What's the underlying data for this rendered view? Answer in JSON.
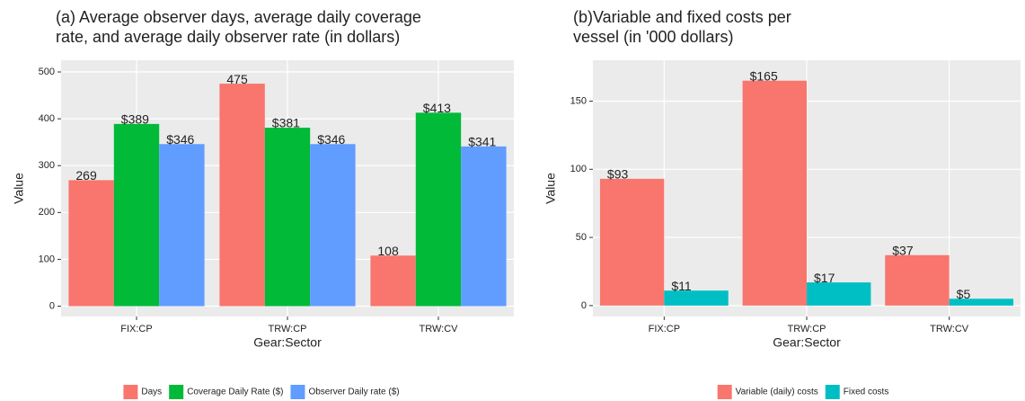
{
  "chart_data": [
    {
      "type": "bar",
      "title": [
        "(a) Average observer days, average daily coverage",
        "rate, and average daily observer rate (in dollars)"
      ],
      "x_label": "Gear:Sector",
      "y_label": "Value",
      "categories": [
        "FIX:CP",
        "TRW:CP",
        "TRW:CV"
      ],
      "series": [
        {
          "name": "Days",
          "color": "#f8766d",
          "values": [
            269,
            475,
            108
          ]
        },
        {
          "name": "Coverage Daily Rate ($)",
          "color": "#00ba38",
          "values": [
            389,
            381,
            413
          ],
          "value_labels": [
            "$389",
            "$381",
            "$413"
          ]
        },
        {
          "name": "Observer Daily rate ($)",
          "color": "#619cff",
          "values": [
            346,
            346,
            341
          ],
          "value_labels": [
            "$346",
            "$346",
            "$341"
          ]
        }
      ],
      "ylim": [
        -22,
        525
      ],
      "yticks": [
        0,
        100,
        200,
        300,
        400,
        500
      ],
      "grid": true,
      "legend": "bottom"
    },
    {
      "type": "bar",
      "title": [
        "(b)Variable and fixed costs per",
        " vessel (in '000 dollars)"
      ],
      "x_label": "Gear:Sector",
      "y_label": "Value",
      "categories": [
        "FIX:CP",
        "TRW:CP",
        "TRW:CV"
      ],
      "series": [
        {
          "name": "Variable (daily) costs",
          "color": "#f8766d",
          "values": [
            93,
            165,
            37
          ],
          "value_labels": [
            "$93",
            "$165",
            "$37"
          ]
        },
        {
          "name": "Fixed costs",
          "color": "#00bfc4",
          "values": [
            11,
            17,
            5
          ],
          "value_labels": [
            "$11",
            "$17",
            "$5"
          ]
        }
      ],
      "ylim": [
        -8,
        180
      ],
      "yticks": [
        0,
        50,
        100,
        150
      ],
      "grid": true,
      "legend": "bottom"
    }
  ]
}
